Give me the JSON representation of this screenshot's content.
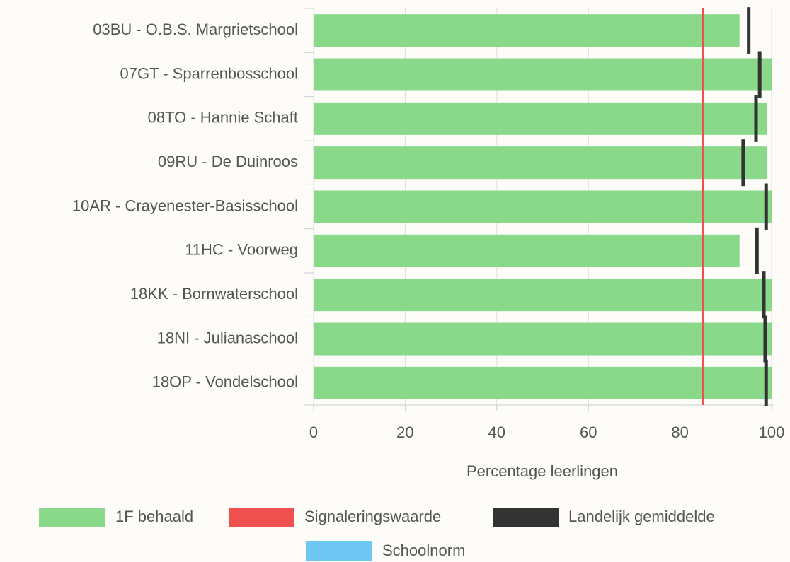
{
  "chart_data": {
    "type": "bar",
    "orientation": "horizontal",
    "categories": [
      "03BU - O.B.S. Margrietschool",
      "07GT - Sparrenbosschool",
      "08TO - Hannie Schaft",
      "09RU - De Duinroos",
      "10AR - Crayenester-Basisschool",
      "11HC - Voorweg",
      "18KK - Bornwaterschool",
      "18NI - Julianaschool",
      "18OP - Vondelschool"
    ],
    "series": [
      {
        "name": "1F behaald",
        "kind": "bar",
        "color": "#8ad98a",
        "values": [
          93,
          100,
          99,
          99,
          100,
          93,
          100,
          100,
          100
        ]
      },
      {
        "name": "Signaleringswaarde",
        "kind": "line",
        "color": "#f0504f",
        "value": 85
      },
      {
        "name": "Landelijk gemiddelde",
        "kind": "marker",
        "color": "#333333",
        "values": [
          95,
          97.4,
          96.6,
          93.8,
          98.8,
          96.8,
          98.3,
          98.6,
          98.8
        ]
      },
      {
        "name": "Schoolnorm",
        "kind": "marker",
        "color": "#6ec6f2",
        "values": [
          null,
          null,
          null,
          null,
          null,
          null,
          null,
          null,
          null
        ]
      }
    ],
    "xlabel": "Percentage leerlingen",
    "xlim": [
      0,
      100
    ],
    "xticks": [
      0,
      20,
      40,
      60,
      80,
      100
    ],
    "grid": true
  }
}
